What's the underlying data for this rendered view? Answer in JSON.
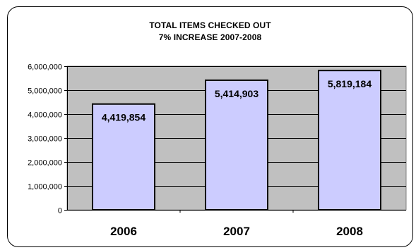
{
  "chart_data": {
    "type": "bar",
    "title": "TOTAL ITEMS CHECKED OUT",
    "subtitle": "7% INCREASE 2007-2008",
    "categories": [
      "2006",
      "2007",
      "2008"
    ],
    "values": [
      4419854,
      5414903,
      5819184
    ],
    "data_labels": [
      "4,419,854",
      "5,414,903",
      "5,819,184"
    ],
    "ylim": [
      0,
      6000000
    ],
    "yticks": [
      0,
      1000000,
      2000000,
      3000000,
      4000000,
      5000000,
      6000000
    ],
    "ytick_labels": [
      "0",
      "1,000,000",
      "2,000,000",
      "3,000,000",
      "4,000,000",
      "5,000,000",
      "6,000,000"
    ],
    "xlabel": "",
    "ylabel": "",
    "grid": true,
    "legend": "none",
    "colors": {
      "plot_area": "#c0c0c0",
      "bar_fill": "#ccccff",
      "bar_stroke": "#000000",
      "gridline": "#000000"
    }
  }
}
